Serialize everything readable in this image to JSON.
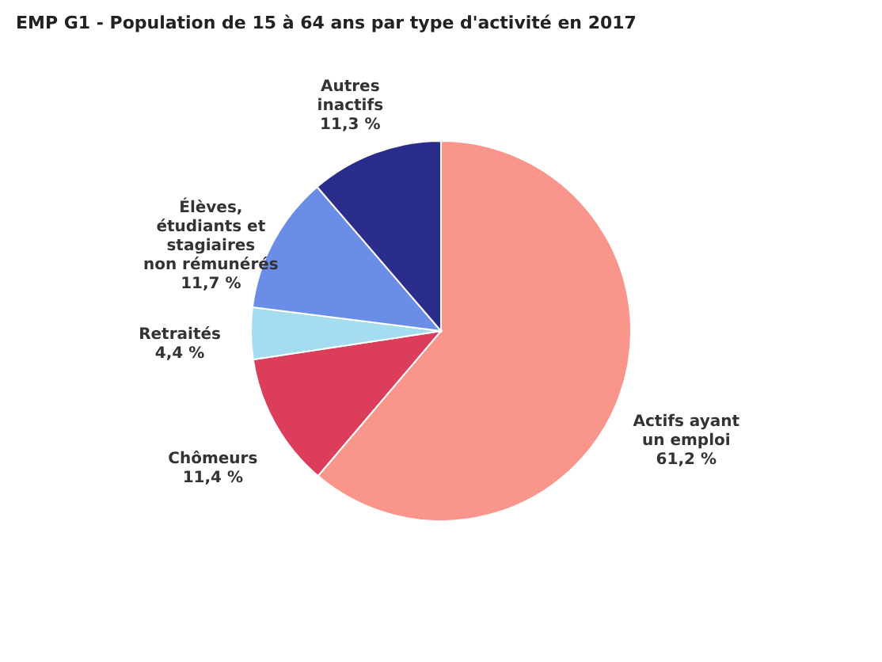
{
  "chart_data": {
    "type": "pie",
    "title": "EMP G1 - Population de 15 à 64 ans par type d'activité en 2017",
    "categories": [
      "Actifs ayant un emploi",
      "Chômeurs",
      "Retraités",
      "Élèves, étudiants et stagiaires non rémunérés",
      "Autres inactifs"
    ],
    "values": [
      61.2,
      11.4,
      4.4,
      11.7,
      11.3
    ],
    "colors": [
      "#f9958a",
      "#dc3d5a",
      "#a6dcef",
      "#6a8de8",
      "#2b2d8c"
    ],
    "value_labels": [
      "61,2 %",
      "11,4 %",
      "4,4 %",
      "11,7 %",
      "11,3 %"
    ]
  }
}
